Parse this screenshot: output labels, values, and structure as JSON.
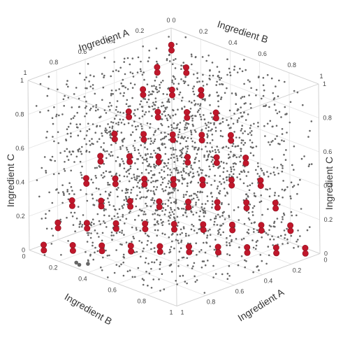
{
  "chart_data": {
    "type": "scatter",
    "title": "",
    "background_color": "#ffffff",
    "grid": true,
    "axes": {
      "a": {
        "label": "Ingredient A",
        "range": [
          0,
          1
        ],
        "ticks": [
          "0",
          "0.2",
          "0.4",
          "0.6",
          "0.8",
          "1"
        ]
      },
      "b": {
        "label": "Ingredient B",
        "range": [
          0,
          1
        ],
        "ticks": [
          "0",
          "0.2",
          "0.4",
          "0.6",
          "0.8",
          "1"
        ]
      },
      "c": {
        "label": "Ingredient C",
        "range": [
          0,
          1
        ],
        "ticks": [
          "0",
          "0.2",
          "0.4",
          "0.6",
          "0.8",
          "1"
        ]
      }
    },
    "axis_labels_near": {
      "a": "Ingredient A",
      "b": "Ingredient B"
    },
    "axis_labels_far": {
      "a": "Ingredient A",
      "b": "Ingredient B",
      "c": "Ingredient C"
    },
    "axis_label_left_c": "Ingredient C",
    "series": [
      {
        "marker": "small-dot",
        "color": "#666666",
        "count_shown": "approx. 2000",
        "distribution": "uniform in unit cube"
      },
      {
        "marker": "large-dot",
        "color": "#c0172b",
        "points": [
          [
            0.0,
            0.0,
            0.9
          ],
          [
            0.0,
            0.1,
            0.8
          ],
          [
            0.0,
            0.2,
            0.7
          ],
          [
            0.0,
            0.3,
            0.6
          ],
          [
            0.0,
            0.4,
            0.5
          ],
          [
            0.0,
            0.5,
            0.4
          ],
          [
            0.0,
            0.6,
            0.3
          ],
          [
            0.0,
            0.7,
            0.2
          ],
          [
            0.0,
            0.8,
            0.1
          ],
          [
            0.0,
            0.9,
            0.0
          ],
          [
            0.1,
            0.0,
            0.8
          ],
          [
            0.1,
            0.1,
            0.7
          ],
          [
            0.1,
            0.2,
            0.6
          ],
          [
            0.1,
            0.3,
            0.5
          ],
          [
            0.1,
            0.4,
            0.4
          ],
          [
            0.1,
            0.5,
            0.3
          ],
          [
            0.1,
            0.6,
            0.2
          ],
          [
            0.1,
            0.7,
            0.1
          ],
          [
            0.1,
            0.8,
            0.0
          ],
          [
            0.2,
            0.0,
            0.7
          ],
          [
            0.2,
            0.1,
            0.6
          ],
          [
            0.2,
            0.2,
            0.5
          ],
          [
            0.2,
            0.3,
            0.4
          ],
          [
            0.2,
            0.4,
            0.3
          ],
          [
            0.2,
            0.5,
            0.2
          ],
          [
            0.2,
            0.6,
            0.1
          ],
          [
            0.2,
            0.7,
            0.0
          ],
          [
            0.3,
            0.0,
            0.6
          ],
          [
            0.3,
            0.1,
            0.5
          ],
          [
            0.3,
            0.2,
            0.4
          ],
          [
            0.3,
            0.3,
            0.3
          ],
          [
            0.3,
            0.4,
            0.2
          ],
          [
            0.3,
            0.5,
            0.1
          ],
          [
            0.3,
            0.6,
            0.0
          ],
          [
            0.4,
            0.0,
            0.5
          ],
          [
            0.4,
            0.1,
            0.4
          ],
          [
            0.4,
            0.2,
            0.3
          ],
          [
            0.4,
            0.3,
            0.2
          ],
          [
            0.4,
            0.4,
            0.1
          ],
          [
            0.4,
            0.5,
            0.0
          ],
          [
            0.5,
            0.0,
            0.4
          ],
          [
            0.5,
            0.1,
            0.3
          ],
          [
            0.5,
            0.2,
            0.2
          ],
          [
            0.5,
            0.3,
            0.1
          ],
          [
            0.5,
            0.4,
            0.0
          ],
          [
            0.6,
            0.0,
            0.3
          ],
          [
            0.6,
            0.1,
            0.2
          ],
          [
            0.6,
            0.2,
            0.1
          ],
          [
            0.6,
            0.3,
            0.0
          ],
          [
            0.7,
            0.0,
            0.2
          ],
          [
            0.7,
            0.1,
            0.1
          ],
          [
            0.7,
            0.2,
            0.0
          ],
          [
            0.8,
            0.0,
            0.1
          ],
          [
            0.8,
            0.1,
            0.0
          ],
          [
            0.9,
            0.0,
            0.0
          ],
          [
            0.05,
            0.05,
            0.9
          ],
          [
            0.15,
            0.05,
            0.8
          ],
          [
            0.05,
            0.15,
            0.8
          ],
          [
            0.25,
            0.05,
            0.7
          ],
          [
            0.15,
            0.15,
            0.7
          ],
          [
            0.05,
            0.25,
            0.7
          ],
          [
            0.35,
            0.05,
            0.6
          ],
          [
            0.25,
            0.15,
            0.6
          ],
          [
            0.15,
            0.25,
            0.6
          ],
          [
            0.05,
            0.35,
            0.6
          ],
          [
            0.45,
            0.05,
            0.5
          ],
          [
            0.35,
            0.15,
            0.5
          ],
          [
            0.25,
            0.25,
            0.5
          ],
          [
            0.15,
            0.35,
            0.5
          ],
          [
            0.05,
            0.45,
            0.5
          ],
          [
            0.55,
            0.05,
            0.4
          ],
          [
            0.45,
            0.15,
            0.4
          ],
          [
            0.35,
            0.25,
            0.4
          ],
          [
            0.25,
            0.35,
            0.4
          ],
          [
            0.15,
            0.45,
            0.4
          ],
          [
            0.05,
            0.55,
            0.4
          ],
          [
            0.65,
            0.05,
            0.3
          ],
          [
            0.55,
            0.15,
            0.3
          ],
          [
            0.45,
            0.25,
            0.3
          ],
          [
            0.35,
            0.35,
            0.3
          ],
          [
            0.25,
            0.45,
            0.3
          ],
          [
            0.15,
            0.55,
            0.3
          ],
          [
            0.05,
            0.65,
            0.3
          ],
          [
            0.75,
            0.05,
            0.2
          ],
          [
            0.65,
            0.15,
            0.2
          ],
          [
            0.55,
            0.25,
            0.2
          ],
          [
            0.45,
            0.35,
            0.2
          ],
          [
            0.35,
            0.45,
            0.2
          ],
          [
            0.25,
            0.55,
            0.2
          ],
          [
            0.15,
            0.65,
            0.2
          ],
          [
            0.05,
            0.75,
            0.2
          ],
          [
            0.85,
            0.05,
            0.1
          ],
          [
            0.75,
            0.15,
            0.1
          ],
          [
            0.65,
            0.25,
            0.1
          ],
          [
            0.55,
            0.35,
            0.1
          ],
          [
            0.45,
            0.45,
            0.1
          ],
          [
            0.35,
            0.55,
            0.1
          ],
          [
            0.25,
            0.65,
            0.1
          ],
          [
            0.15,
            0.75,
            0.1
          ],
          [
            0.05,
            0.85,
            0.1
          ],
          [
            0.95,
            0.05,
            0.0
          ],
          [
            0.85,
            0.15,
            0.0
          ],
          [
            0.75,
            0.25,
            0.0
          ],
          [
            0.65,
            0.35,
            0.0
          ],
          [
            0.55,
            0.45,
            0.0
          ],
          [
            0.45,
            0.55,
            0.0
          ],
          [
            0.35,
            0.65,
            0.0
          ],
          [
            0.25,
            0.75,
            0.0
          ],
          [
            0.15,
            0.85,
            0.0
          ],
          [
            0.05,
            0.95,
            0.0
          ]
        ]
      },
      {
        "marker": "medium-dot",
        "color": "#666666",
        "points": [
          [
            0.92,
            0.32,
            0.0
          ],
          [
            0.96,
            0.3,
            0.0
          ],
          [
            0.95,
            0.27,
            0.0
          ]
        ]
      }
    ]
  }
}
